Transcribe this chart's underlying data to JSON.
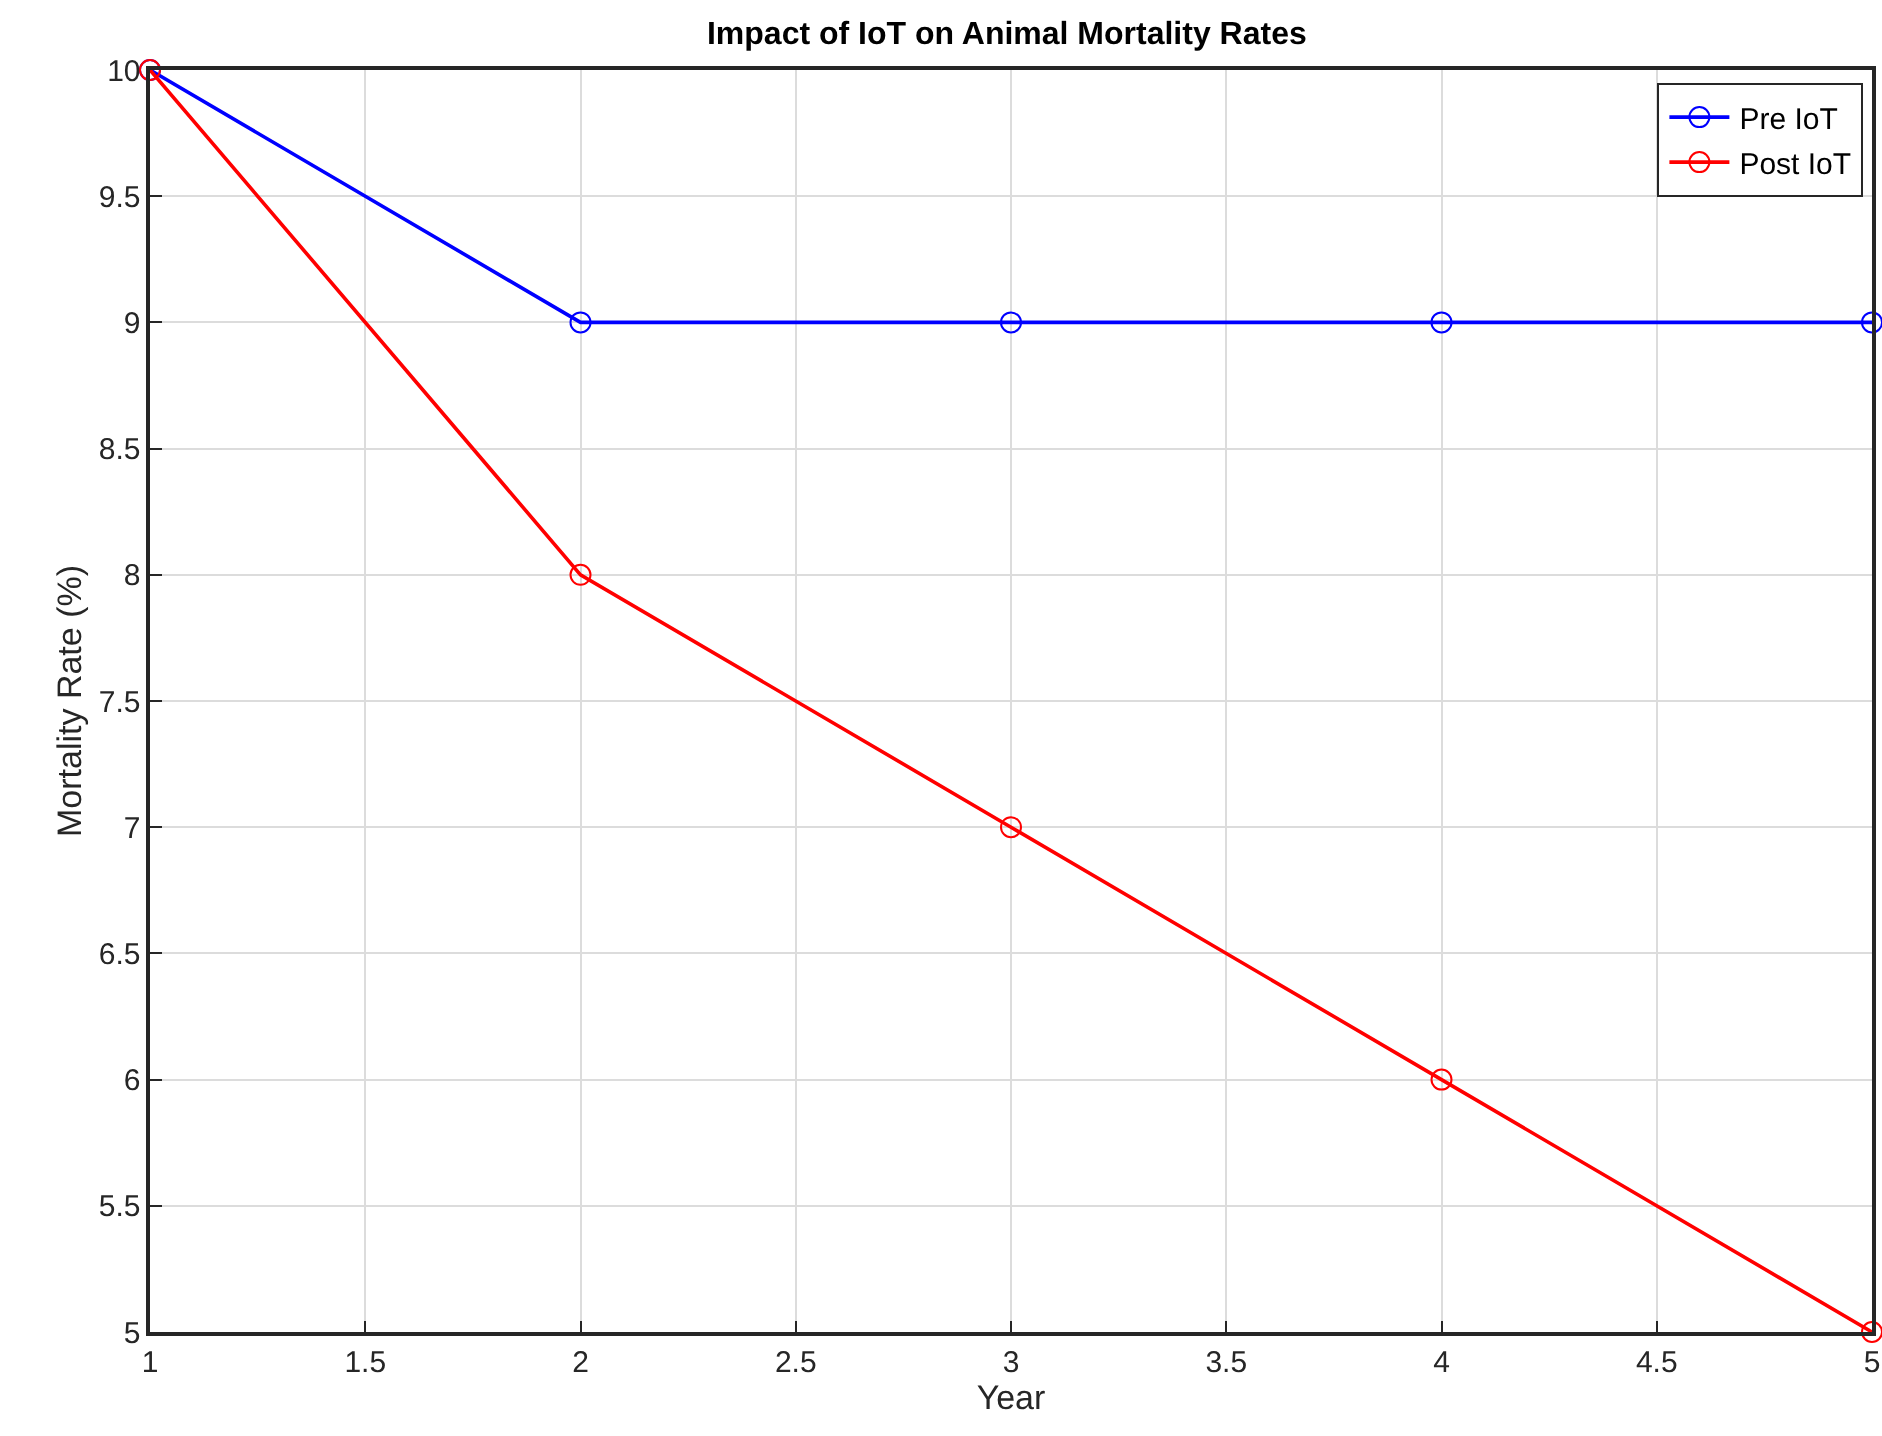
{
  "chart_data": {
    "type": "line",
    "title": "Impact of IoT on Animal Mortality Rates",
    "xlabel": "Year",
    "ylabel": "Mortality Rate (%)",
    "x": [
      1,
      2,
      3,
      4,
      5
    ],
    "series": [
      {
        "name": "Pre IoT",
        "color": "#0000ff",
        "values": [
          10,
          9,
          9,
          9,
          9
        ]
      },
      {
        "name": "Post IoT",
        "color": "#ff0000",
        "values": [
          10,
          8,
          7,
          6,
          5
        ]
      }
    ],
    "xlim": [
      1,
      5
    ],
    "xticks": [
      1,
      1.5,
      2,
      2.5,
      3,
      3.5,
      4,
      4.5,
      5
    ],
    "ylim": [
      5,
      10
    ],
    "yticks": [
      5,
      5.5,
      6,
      6.5,
      7,
      7.5,
      8,
      8.5,
      9,
      9.5,
      10
    ],
    "grid": true,
    "legend": "top right",
    "marker": "circle",
    "line_style": "solid"
  }
}
